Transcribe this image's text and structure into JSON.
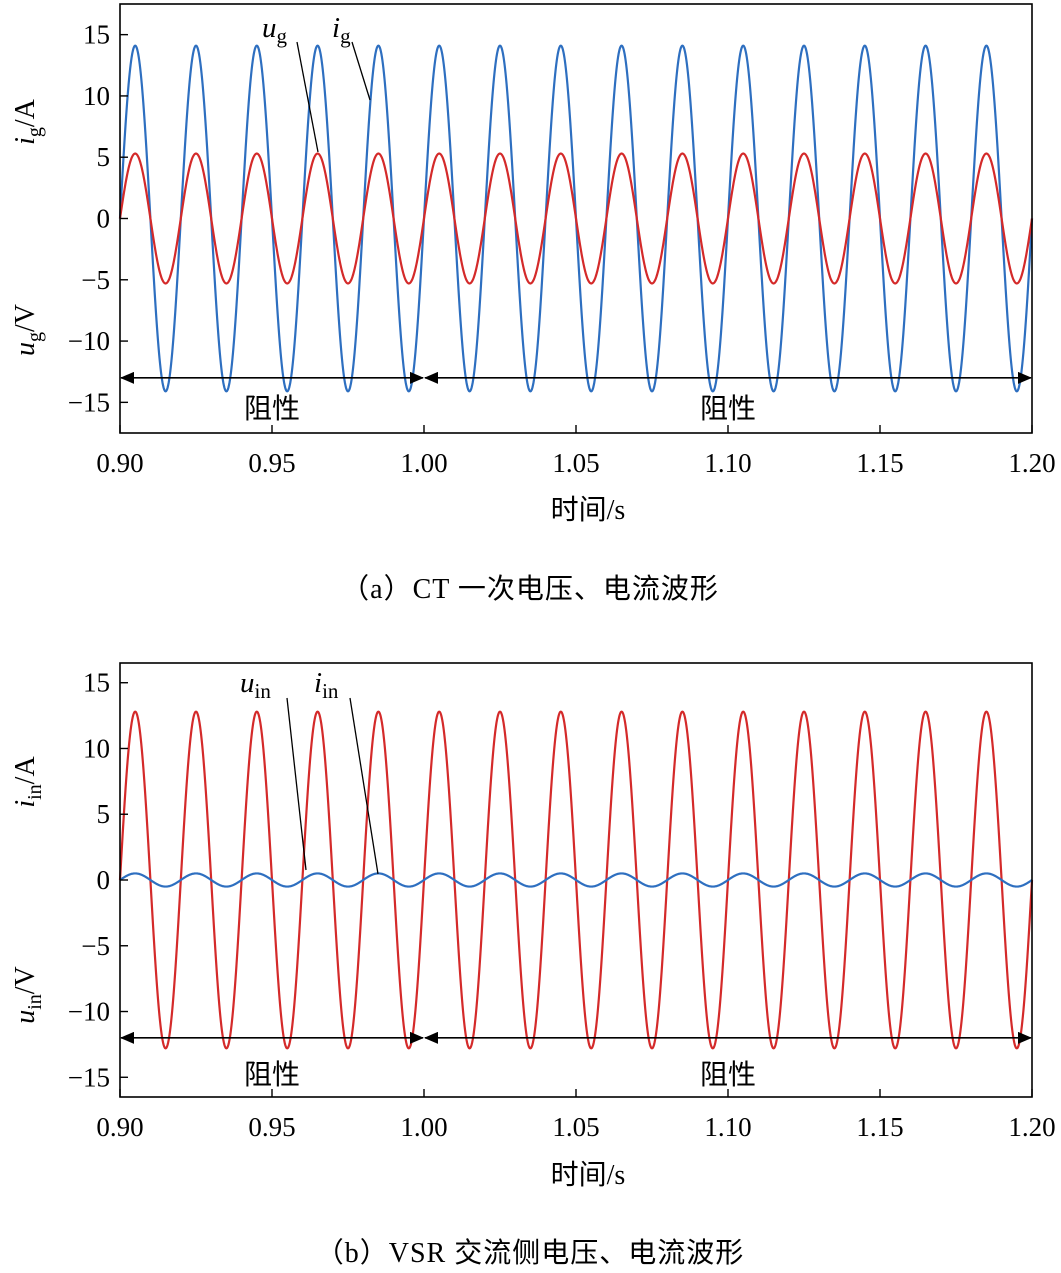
{
  "chart_data": [
    {
      "type": "line",
      "caption": "（a）CT 一次电压、电流波形",
      "xlabel": "时间/s",
      "xlim": [
        0.9,
        1.2
      ],
      "ylim": [
        -17.5,
        17.5
      ],
      "x_ticks": [
        "0.90",
        "0.95",
        "1.00",
        "1.05",
        "1.10",
        "1.15",
        "1.20"
      ],
      "y_ticks": [
        "15",
        "10",
        "5",
        "0",
        "−5",
        "−10",
        "−15"
      ],
      "ylabel_upper": {
        "sym": "i",
        "sub": "g",
        "unit": "/A"
      },
      "ylabel_lower": {
        "sym": "u",
        "sub": "g",
        "unit": "/V"
      },
      "series": [
        {
          "name": "u_g",
          "label_sym": "u",
          "label_sub": "g",
          "color": "#2e6fc0",
          "waveform": "sine",
          "amplitude": 14.1,
          "frequency_hz": 50,
          "phase_deg": 0
        },
        {
          "name": "i_g",
          "label_sym": "i",
          "label_sub": "g",
          "color": "#d42a2a",
          "waveform": "sine",
          "amplitude": 5.3,
          "frequency_hz": 50,
          "phase_deg": 0
        }
      ],
      "regions": [
        {
          "label": "阻性",
          "x_start": 0.9,
          "x_end": 1.0,
          "y": -13
        },
        {
          "label": "阻性",
          "x_start": 1.0,
          "x_end": 1.2,
          "y": -13
        }
      ]
    },
    {
      "type": "line",
      "caption": "（b）VSR 交流侧电压、电流波形",
      "xlabel": "时间/s",
      "xlim": [
        0.9,
        1.2
      ],
      "ylim": [
        -16.5,
        16.5
      ],
      "x_ticks": [
        "0.90",
        "0.95",
        "1.00",
        "1.05",
        "1.10",
        "1.15",
        "1.20"
      ],
      "y_ticks": [
        "15",
        "10",
        "5",
        "0",
        "−5",
        "−10",
        "−15"
      ],
      "ylabel_upper": {
        "sym": "i",
        "sub": "in",
        "unit": "/A"
      },
      "ylabel_lower": {
        "sym": "u",
        "sub": "in",
        "unit": "/V"
      },
      "series": [
        {
          "name": "u_in",
          "label_sym": "u",
          "label_sub": "in",
          "color": "#d42a2a",
          "waveform": "sine",
          "amplitude": 12.8,
          "frequency_hz": 50,
          "phase_deg": 0
        },
        {
          "name": "i_in",
          "label_sym": "i",
          "label_sub": "in",
          "color": "#2e6fc0",
          "waveform": "sine",
          "amplitude": 0.5,
          "frequency_hz": 50,
          "phase_deg": 0
        }
      ],
      "regions": [
        {
          "label": "阻性",
          "x_start": 0.9,
          "x_end": 1.0,
          "y": -12
        },
        {
          "label": "阻性",
          "x_start": 1.0,
          "x_end": 1.2,
          "y": -12
        }
      ]
    }
  ]
}
